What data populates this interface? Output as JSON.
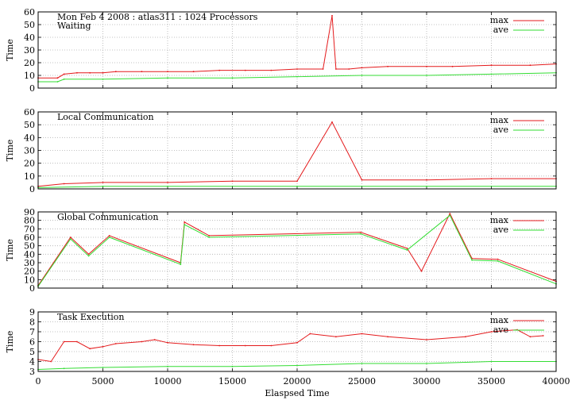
{
  "figure": {
    "xlabel": "Elaspsed Time",
    "ylabel": "Time",
    "xlim": [
      0,
      40000
    ],
    "xticks": [
      0,
      5000,
      10000,
      15000,
      20000,
      25000,
      30000,
      35000,
      40000
    ],
    "legend": [
      "max",
      "ave"
    ],
    "colors": {
      "max": "#e41a1c",
      "ave": "#33dd33",
      "grid": "#b0b0b0",
      "axis": "#000000"
    }
  },
  "chart_data": [
    {
      "type": "line",
      "title": "Mon Feb 4 2008 : atlas311 : 1024 Processors",
      "label": "Waiting",
      "ylim": [
        0,
        60
      ],
      "yticks": [
        0,
        10,
        20,
        30,
        40,
        50,
        60
      ],
      "grid": true,
      "legend_position": "top-right",
      "series": [
        {
          "name": "max",
          "x": [
            0,
            1500,
            2000,
            3000,
            4000,
            5000,
            6000,
            8000,
            10000,
            12000,
            14000,
            16000,
            18000,
            20000,
            22000,
            22700,
            23000,
            24000,
            25000,
            27000,
            30000,
            32000,
            35000,
            38000,
            40000
          ],
          "values": [
            8,
            8,
            11,
            12,
            12,
            12,
            13,
            13,
            13,
            13,
            14,
            14,
            14,
            15,
            15,
            57,
            15,
            15,
            16,
            17,
            17,
            17,
            18,
            18,
            19
          ]
        },
        {
          "name": "ave",
          "x": [
            0,
            1500,
            2000,
            5000,
            10000,
            15000,
            20000,
            25000,
            30000,
            35000,
            40000
          ],
          "values": [
            5,
            5,
            7,
            7,
            8,
            8,
            9,
            10,
            10,
            11,
            12
          ]
        }
      ]
    },
    {
      "type": "line",
      "label": "Local Communication",
      "ylim": [
        0,
        60
      ],
      "yticks": [
        0,
        10,
        20,
        30,
        40,
        50,
        60
      ],
      "grid": true,
      "legend_position": "top-right",
      "series": [
        {
          "name": "max",
          "x": [
            0,
            2000,
            5000,
            10000,
            15000,
            20000,
            22700,
            25000,
            30000,
            35000,
            40000
          ],
          "values": [
            2,
            4,
            5,
            5,
            6,
            6,
            52,
            7,
            7,
            8,
            8
          ]
        },
        {
          "name": "ave",
          "x": [
            0,
            5000,
            10000,
            20000,
            30000,
            40000
          ],
          "values": [
            1,
            2,
            2,
            2,
            2,
            2
          ]
        }
      ]
    },
    {
      "type": "line",
      "label": "Global Communication",
      "ylim": [
        0,
        90
      ],
      "yticks": [
        0,
        10,
        20,
        30,
        40,
        50,
        60,
        70,
        80,
        90
      ],
      "grid": true,
      "legend_position": "top-right",
      "series": [
        {
          "name": "max",
          "x": [
            0,
            2500,
            3900,
            5500,
            11000,
            11300,
            13200,
            24900,
            28500,
            29600,
            31800,
            33500,
            35500,
            40000
          ],
          "values": [
            3,
            60,
            40,
            62,
            30,
            78,
            62,
            66,
            47,
            20,
            88,
            35,
            34,
            8
          ]
        },
        {
          "name": "ave",
          "x": [
            0,
            2500,
            3900,
            5500,
            11000,
            11300,
            13200,
            24900,
            28500,
            31800,
            33500,
            35500,
            40000
          ],
          "values": [
            2,
            58,
            38,
            60,
            28,
            75,
            60,
            64,
            45,
            86,
            33,
            32,
            5
          ]
        }
      ]
    },
    {
      "type": "line",
      "label": "Task Execution",
      "ylim": [
        3,
        9
      ],
      "yticks": [
        3,
        4,
        5,
        6,
        7,
        8,
        9
      ],
      "grid": true,
      "legend_position": "top-right",
      "series": [
        {
          "name": "max",
          "x": [
            0,
            1000,
            2000,
            3000,
            4000,
            5000,
            6000,
            8000,
            9000,
            10000,
            12000,
            14000,
            16000,
            18000,
            20000,
            21000,
            23000,
            25000,
            27000,
            30000,
            33000,
            35000,
            37000,
            38000,
            39000
          ],
          "values": [
            4.2,
            4.0,
            6.0,
            6.0,
            5.3,
            5.5,
            5.8,
            6.0,
            6.2,
            5.9,
            5.7,
            5.6,
            5.6,
            5.6,
            5.9,
            6.8,
            6.5,
            6.8,
            6.5,
            6.2,
            6.5,
            7.0,
            7.2,
            6.5,
            6.6
          ]
        },
        {
          "name": "ave",
          "x": [
            0,
            2000,
            5000,
            10000,
            15000,
            20000,
            25000,
            30000,
            35000,
            40000
          ],
          "values": [
            3.2,
            3.3,
            3.4,
            3.5,
            3.5,
            3.6,
            3.8,
            3.8,
            4.0,
            4.0
          ]
        }
      ]
    }
  ]
}
